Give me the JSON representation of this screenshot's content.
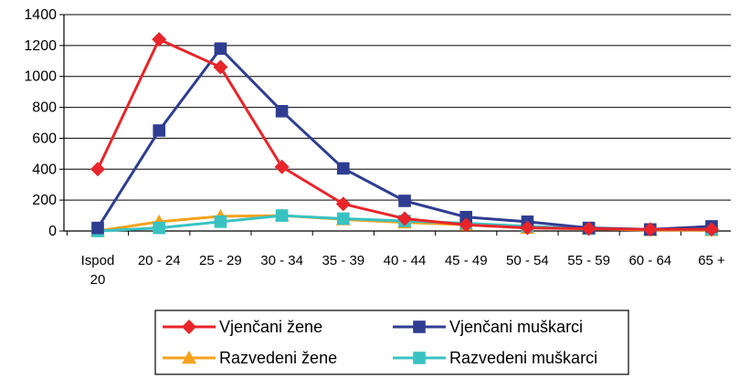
{
  "chart_data": {
    "type": "line",
    "title": "",
    "xlabel": "",
    "ylabel": "",
    "ylim": [
      0,
      1400
    ],
    "yticks": [
      0,
      200,
      400,
      600,
      800,
      1000,
      1200,
      1400
    ],
    "grid": "horizontal",
    "legend_position": "bottom",
    "categories": [
      [
        "Ispod",
        "20"
      ],
      [
        "20 - 24"
      ],
      [
        "25 - 29"
      ],
      [
        "30 - 34"
      ],
      [
        "35 - 39"
      ],
      [
        "40 - 44"
      ],
      [
        "45 - 49"
      ],
      [
        "50 - 54"
      ],
      [
        "55 - 59"
      ],
      [
        "60 - 64"
      ],
      [
        "65 +"
      ]
    ],
    "series": [
      {
        "name": "Vjenčani žene",
        "color": "#e8252a",
        "marker": "diamond",
        "values": [
          400,
          1240,
          1060,
          415,
          175,
          80,
          40,
          20,
          15,
          10,
          10
        ]
      },
      {
        "name": "Vjenčani muškarci",
        "color": "#2f3d91",
        "marker": "square",
        "values": [
          20,
          650,
          1180,
          775,
          405,
          195,
          90,
          60,
          20,
          10,
          30
        ]
      },
      {
        "name": "Razvedeni žene",
        "color": "#f5a21c",
        "marker": "triangle",
        "values": [
          0,
          60,
          95,
          100,
          75,
          55,
          40,
          20,
          15,
          5,
          5
        ]
      },
      {
        "name": "Razvedeni muškarci",
        "color": "#39c2c2",
        "marker": "square",
        "values": [
          0,
          20,
          60,
          100,
          80,
          65,
          50,
          30,
          15,
          10,
          10
        ]
      }
    ]
  }
}
